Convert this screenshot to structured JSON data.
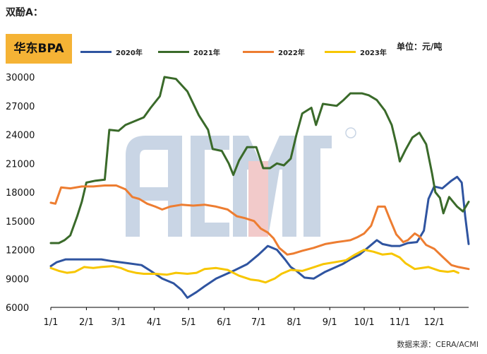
{
  "header": {
    "title": "双酚A：",
    "badge": "华东BPA",
    "unit": "单位：元/吨",
    "source": "数据来源：CERA/ACMI"
  },
  "chart_data": {
    "type": "line",
    "x_ticks": [
      "1/1",
      "2/1",
      "3/1",
      "4/1",
      "5/1",
      "6/1",
      "7/1",
      "8/1",
      "9/1",
      "10/1",
      "11/1",
      "12/1"
    ],
    "x_range": [
      1,
      365
    ],
    "ylim": [
      6000,
      30000
    ],
    "y_ticks": [
      6000,
      9000,
      12000,
      15000,
      18000,
      21000,
      24000,
      27000,
      30000
    ],
    "grid": false,
    "legend_position": "top",
    "watermark": "ACMI",
    "series": [
      {
        "name": "2020年",
        "color": "#2f54a0",
        "points": [
          [
            1,
            10300
          ],
          [
            6,
            10700
          ],
          [
            14,
            11000
          ],
          [
            30,
            11000
          ],
          [
            45,
            11000
          ],
          [
            55,
            10800
          ],
          [
            68,
            10600
          ],
          [
            80,
            10400
          ],
          [
            88,
            9800
          ],
          [
            98,
            9000
          ],
          [
            108,
            8500
          ],
          [
            115,
            7800
          ],
          [
            120,
            7000
          ],
          [
            128,
            7600
          ],
          [
            135,
            8200
          ],
          [
            145,
            9000
          ],
          [
            160,
            9800
          ],
          [
            172,
            10500
          ],
          [
            182,
            11500
          ],
          [
            190,
            12400
          ],
          [
            198,
            12000
          ],
          [
            205,
            11000
          ],
          [
            210,
            10200
          ],
          [
            215,
            9800
          ],
          [
            222,
            9100
          ],
          [
            230,
            9000
          ],
          [
            240,
            9700
          ],
          [
            255,
            10500
          ],
          [
            262,
            11000
          ],
          [
            270,
            11500
          ],
          [
            280,
            12500
          ],
          [
            285,
            13000
          ],
          [
            290,
            12600
          ],
          [
            298,
            12400
          ],
          [
            305,
            12400
          ],
          [
            312,
            12700
          ],
          [
            320,
            12800
          ],
          [
            326,
            14000
          ],
          [
            330,
            17300
          ],
          [
            335,
            18600
          ],
          [
            342,
            18400
          ],
          [
            350,
            19200
          ],
          [
            355,
            19600
          ],
          [
            359,
            19000
          ],
          [
            362,
            15500
          ],
          [
            365,
            12600
          ]
        ]
      },
      {
        "name": "2021年",
        "color": "#3a6a2a",
        "points": [
          [
            1,
            12700
          ],
          [
            8,
            12700
          ],
          [
            13,
            13000
          ],
          [
            18,
            13500
          ],
          [
            24,
            15500
          ],
          [
            28,
            17000
          ],
          [
            32,
            19000
          ],
          [
            40,
            19200
          ],
          [
            48,
            19300
          ],
          [
            52,
            24500
          ],
          [
            60,
            24400
          ],
          [
            66,
            25000
          ],
          [
            76,
            25500
          ],
          [
            82,
            25800
          ],
          [
            88,
            26800
          ],
          [
            96,
            28000
          ],
          [
            100,
            30000
          ],
          [
            110,
            29800
          ],
          [
            120,
            28500
          ],
          [
            130,
            26000
          ],
          [
            138,
            24500
          ],
          [
            142,
            22500
          ],
          [
            150,
            22300
          ],
          [
            156,
            21000
          ],
          [
            160,
            19800
          ],
          [
            165,
            21300
          ],
          [
            172,
            22700
          ],
          [
            180,
            22700
          ],
          [
            186,
            20500
          ],
          [
            192,
            20500
          ],
          [
            198,
            21000
          ],
          [
            204,
            20800
          ],
          [
            210,
            21500
          ],
          [
            215,
            24000
          ],
          [
            220,
            26200
          ],
          [
            228,
            26800
          ],
          [
            232,
            25000
          ],
          [
            238,
            27200
          ],
          [
            250,
            27000
          ],
          [
            256,
            27600
          ],
          [
            262,
            28300
          ],
          [
            272,
            28300
          ],
          [
            278,
            28100
          ],
          [
            285,
            27600
          ],
          [
            292,
            26500
          ],
          [
            298,
            25000
          ],
          [
            302,
            23000
          ],
          [
            305,
            21200
          ],
          [
            310,
            22400
          ],
          [
            316,
            23700
          ],
          [
            322,
            24200
          ],
          [
            328,
            23000
          ],
          [
            333,
            20000
          ],
          [
            336,
            18000
          ],
          [
            340,
            17400
          ],
          [
            343,
            15800
          ],
          [
            348,
            17500
          ],
          [
            355,
            16500
          ],
          [
            360,
            16000
          ],
          [
            365,
            17000
          ]
        ]
      },
      {
        "name": "2022年",
        "color": "#ed7d31",
        "points": [
          [
            1,
            16900
          ],
          [
            5,
            16800
          ],
          [
            10,
            18500
          ],
          [
            18,
            18400
          ],
          [
            28,
            18600
          ],
          [
            38,
            18600
          ],
          [
            48,
            18700
          ],
          [
            58,
            18700
          ],
          [
            66,
            18300
          ],
          [
            72,
            17500
          ],
          [
            78,
            17300
          ],
          [
            85,
            16800
          ],
          [
            92,
            16500
          ],
          [
            98,
            16200
          ],
          [
            105,
            16500
          ],
          [
            115,
            16700
          ],
          [
            125,
            16600
          ],
          [
            135,
            16700
          ],
          [
            145,
            16500
          ],
          [
            155,
            16200
          ],
          [
            163,
            15500
          ],
          [
            170,
            15300
          ],
          [
            178,
            15000
          ],
          [
            184,
            14200
          ],
          [
            190,
            13800
          ],
          [
            195,
            13200
          ],
          [
            200,
            12200
          ],
          [
            207,
            11500
          ],
          [
            212,
            11600
          ],
          [
            220,
            11900
          ],
          [
            230,
            12200
          ],
          [
            240,
            12600
          ],
          [
            250,
            12800
          ],
          [
            256,
            12900
          ],
          [
            262,
            13000
          ],
          [
            268,
            13300
          ],
          [
            274,
            13700
          ],
          [
            280,
            14500
          ],
          [
            286,
            16500
          ],
          [
            292,
            16500
          ],
          [
            296,
            15300
          ],
          [
            302,
            13600
          ],
          [
            308,
            12800
          ],
          [
            312,
            13000
          ],
          [
            318,
            13700
          ],
          [
            322,
            13400
          ],
          [
            328,
            12500
          ],
          [
            335,
            12100
          ],
          [
            342,
            11300
          ],
          [
            350,
            10400
          ],
          [
            356,
            10200
          ],
          [
            365,
            10000
          ]
        ]
      },
      {
        "name": "2023年",
        "color": "#f7c600",
        "points": [
          [
            1,
            10100
          ],
          [
            8,
            9800
          ],
          [
            15,
            9600
          ],
          [
            22,
            9700
          ],
          [
            30,
            10200
          ],
          [
            38,
            10100
          ],
          [
            45,
            10200
          ],
          [
            55,
            10300
          ],
          [
            62,
            10100
          ],
          [
            68,
            9800
          ],
          [
            75,
            9600
          ],
          [
            82,
            9500
          ],
          [
            92,
            9500
          ],
          [
            102,
            9400
          ],
          [
            110,
            9600
          ],
          [
            120,
            9500
          ],
          [
            128,
            9600
          ],
          [
            135,
            10000
          ],
          [
            145,
            10100
          ],
          [
            155,
            9900
          ],
          [
            165,
            9300
          ],
          [
            175,
            8900
          ],
          [
            182,
            8800
          ],
          [
            188,
            8600
          ],
          [
            196,
            9000
          ],
          [
            202,
            9500
          ],
          [
            210,
            9900
          ],
          [
            220,
            9800
          ],
          [
            228,
            10100
          ],
          [
            238,
            10500
          ],
          [
            248,
            10700
          ],
          [
            258,
            10900
          ],
          [
            266,
            11500
          ],
          [
            274,
            12000
          ],
          [
            282,
            11800
          ],
          [
            290,
            11500
          ],
          [
            298,
            11600
          ],
          [
            305,
            11200
          ],
          [
            310,
            10600
          ],
          [
            318,
            10000
          ],
          [
            330,
            10200
          ],
          [
            340,
            9800
          ],
          [
            347,
            9700
          ],
          [
            352,
            9800
          ],
          [
            356,
            9600
          ]
        ]
      }
    ]
  }
}
